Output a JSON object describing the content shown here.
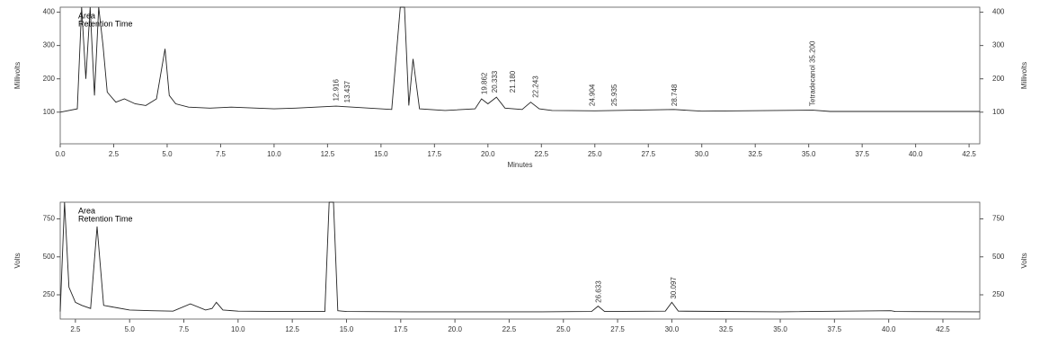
{
  "chart_data": [
    {
      "type": "line",
      "x_label": "Minutes",
      "y_label": "Millivolts",
      "legend_texts": [
        "Area",
        "Retention Time"
      ],
      "xlim": [
        0,
        43
      ],
      "ylim": [
        5,
        415
      ],
      "xticks": [
        {
          "value": 0,
          "label": "0.0"
        },
        {
          "value": 2.5,
          "label": "2.5"
        },
        {
          "value": 5,
          "label": "5.0"
        },
        {
          "value": 7.5,
          "label": "7.5"
        },
        {
          "value": 10,
          "label": "10.0"
        },
        {
          "value": 12.5,
          "label": "12.5"
        },
        {
          "value": 15,
          "label": "15.0"
        },
        {
          "value": 17.5,
          "label": "17.5"
        },
        {
          "value": 20,
          "label": "20.0"
        },
        {
          "value": 22.5,
          "label": "22.5"
        },
        {
          "value": 25,
          "label": "25.0"
        },
        {
          "value": 27.5,
          "label": "27.5"
        },
        {
          "value": 30,
          "label": "30.0"
        },
        {
          "value": 32.5,
          "label": "32.5"
        },
        {
          "value": 35,
          "label": "35.0"
        },
        {
          "value": 37.5,
          "label": "37.5"
        },
        {
          "value": 40,
          "label": "40.0"
        },
        {
          "value": 42.5,
          "label": "42.5"
        }
      ],
      "yticks": [
        100,
        200,
        300,
        400
      ],
      "series": [
        {
          "color": "#222222",
          "x": [
            0,
            0.8,
            1.0,
            1.2,
            1.4,
            1.6,
            1.8,
            2.0,
            2.2,
            2.6,
            3.0,
            3.5,
            4.0,
            4.5,
            4.9,
            5.1,
            5.4,
            6.0,
            7.0,
            8.0,
            10.0,
            11.0,
            12.9,
            13.4,
            15.5,
            15.9,
            16.1,
            16.3,
            16.5,
            16.8,
            18.0,
            19.4,
            19.7,
            20.0,
            20.4,
            20.8,
            21.6,
            22.0,
            22.4,
            23.0,
            25.0,
            28.7,
            30.0,
            35.2,
            36.0,
            43.0
          ],
          "values": [
            100,
            110,
            415,
            200,
            415,
            150,
            415,
            300,
            160,
            130,
            140,
            125,
            120,
            140,
            290,
            150,
            125,
            115,
            112,
            115,
            110,
            112,
            118,
            116,
            108,
            415,
            415,
            120,
            260,
            110,
            105,
            110,
            140,
            125,
            145,
            112,
            108,
            130,
            110,
            105,
            104,
            108,
            103,
            106,
            102,
            102
          ]
        }
      ],
      "annotations": [
        {
          "x": 12.916,
          "y": 125,
          "label": "12.916"
        },
        {
          "x": 13.437,
          "y": 120,
          "label": "13.437"
        },
        {
          "x": 19.862,
          "y": 145,
          "label": "19.862"
        },
        {
          "x": 20.333,
          "y": 150,
          "label": "20.333"
        },
        {
          "x": 21.18,
          "y": 150,
          "label": "21.180"
        },
        {
          "x": 22.243,
          "y": 135,
          "label": "22.243"
        },
        {
          "x": 24.904,
          "y": 110,
          "label": "24.904"
        },
        {
          "x": 25.935,
          "y": 110,
          "label": "25.935"
        },
        {
          "x": 28.748,
          "y": 110,
          "label": "28.748"
        },
        {
          "x": 35.2,
          "y": 110,
          "label": "Tetradecanol 35.200"
        }
      ]
    },
    {
      "type": "line",
      "y_label": "Volts",
      "legend_texts": [
        "Area",
        "Retention Time"
      ],
      "xlim": [
        1.8,
        44.2
      ],
      "ylim": [
        90,
        860
      ],
      "xticks": [
        {
          "value": 2.5,
          "label": "2.5"
        },
        {
          "value": 5,
          "label": "5.0"
        },
        {
          "value": 7.5,
          "label": "7.5"
        },
        {
          "value": 10,
          "label": "10.0"
        },
        {
          "value": 12.5,
          "label": "12.5"
        },
        {
          "value": 15,
          "label": "15.0"
        },
        {
          "value": 17.5,
          "label": "17.5"
        },
        {
          "value": 20,
          "label": "20.0"
        },
        {
          "value": 22.5,
          "label": "22.5"
        },
        {
          "value": 25,
          "label": "25.0"
        },
        {
          "value": 27.5,
          "label": "27.5"
        },
        {
          "value": 30,
          "label": "30.0"
        },
        {
          "value": 32.5,
          "label": "32.5"
        },
        {
          "value": 35,
          "label": "35.0"
        },
        {
          "value": 37.5,
          "label": "37.5"
        },
        {
          "value": 40,
          "label": "40.0"
        },
        {
          "value": 42.5,
          "label": "42.5"
        }
      ],
      "yticks": [
        250,
        500,
        750
      ],
      "series": [
        {
          "color": "#222222",
          "x": [
            1.8,
            2.0,
            2.2,
            2.5,
            2.8,
            3.2,
            3.5,
            3.8,
            4.2,
            5.0,
            6.0,
            7.0,
            7.8,
            8.5,
            8.8,
            9.0,
            9.3,
            10.0,
            12.0,
            14.0,
            14.2,
            14.4,
            14.6,
            15.0,
            18.0,
            21.0,
            24.0,
            26.3,
            26.6,
            26.9,
            29.7,
            30.0,
            30.3,
            35.0,
            40.1,
            40.3,
            44.2
          ],
          "values": [
            140,
            860,
            300,
            200,
            180,
            160,
            700,
            180,
            170,
            150,
            145,
            142,
            190,
            150,
            160,
            200,
            150,
            142,
            140,
            140,
            860,
            860,
            145,
            140,
            138,
            138,
            138,
            140,
            175,
            140,
            142,
            200,
            142,
            138,
            145,
            140,
            138
          ]
        }
      ],
      "annotations": [
        {
          "x": 26.633,
          "y": 180,
          "label": "26.633"
        },
        {
          "x": 30.097,
          "y": 205,
          "label": "30.097"
        }
      ]
    }
  ]
}
